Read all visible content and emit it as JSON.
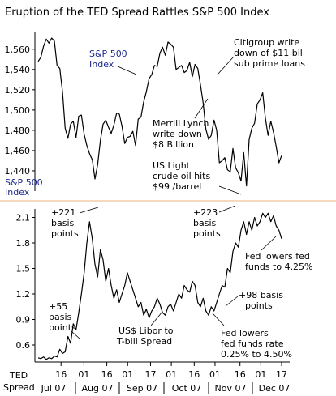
{
  "colors": {
    "background": "#ffffff",
    "line": "#000000",
    "top_label": "#1f2a8c",
    "bottom_label": "#000000",
    "divider": "#e8b37a"
  },
  "chart_data": [
    {
      "type": "line",
      "title": "Eruption of the TED Spread Rattles S&P 500 Index",
      "series_label": [
        "S&P 500",
        "Index"
      ],
      "ylabel_lines": [
        "S&P 500",
        "Index"
      ],
      "ylim": [
        1420,
        1575
      ],
      "yticks": [
        1560,
        1540,
        1520,
        1500,
        1480,
        1460,
        1440
      ],
      "ytick_labels": [
        "1,560",
        "1,540",
        "1,520",
        "1,500",
        "1,480",
        "1,460",
        "1,440"
      ],
      "grid": false,
      "series": [
        {
          "values": [
            [
              0,
              1548
            ],
            [
              1,
              1552
            ],
            [
              2,
              1563
            ],
            [
              3,
              1570
            ],
            [
              4,
              1566
            ],
            [
              5,
              1571
            ],
            [
              6,
              1568
            ],
            [
              7,
              1544
            ],
            [
              8,
              1541
            ],
            [
              9,
              1518
            ],
            [
              10,
              1482
            ],
            [
              11,
              1472
            ],
            [
              12,
              1486
            ],
            [
              13,
              1489
            ],
            [
              14,
              1473
            ],
            [
              15,
              1494
            ],
            [
              16,
              1495
            ],
            [
              17,
              1476
            ],
            [
              18,
              1465
            ],
            [
              19,
              1457
            ],
            [
              20,
              1451
            ],
            [
              21,
              1432
            ],
            [
              22,
              1446
            ],
            [
              23,
              1470
            ],
            [
              24,
              1486
            ],
            [
              25,
              1490
            ],
            [
              26,
              1483
            ],
            [
              27,
              1477
            ],
            [
              28,
              1485
            ],
            [
              29,
              1497
            ],
            [
              30,
              1496
            ],
            [
              31,
              1484
            ],
            [
              32,
              1467
            ],
            [
              33,
              1473
            ],
            [
              34,
              1474
            ],
            [
              35,
              1479
            ],
            [
              36,
              1465
            ],
            [
              37,
              1491
            ],
            [
              38,
              1493
            ],
            [
              39,
              1508
            ],
            [
              40,
              1518
            ],
            [
              41,
              1531
            ],
            [
              42,
              1535
            ],
            [
              43,
              1544
            ],
            [
              44,
              1543
            ],
            [
              45,
              1556
            ],
            [
              46,
              1562
            ],
            [
              47,
              1554
            ],
            [
              48,
              1567
            ],
            [
              49,
              1565
            ],
            [
              50,
              1562
            ],
            [
              51,
              1540
            ],
            [
              52,
              1542
            ],
            [
              53,
              1544
            ],
            [
              54,
              1537
            ],
            [
              55,
              1539
            ],
            [
              56,
              1547
            ],
            [
              57,
              1533
            ],
            [
              58,
              1545
            ],
            [
              59,
              1541
            ],
            [
              60,
              1525
            ],
            [
              61,
              1507
            ],
            [
              62,
              1481
            ],
            [
              63,
              1471
            ],
            [
              64,
              1475
            ],
            [
              65,
              1490
            ],
            [
              66,
              1480
            ],
            [
              67,
              1448
            ],
            [
              68,
              1450
            ],
            [
              69,
              1453
            ],
            [
              70,
              1441
            ],
            [
              71,
              1439
            ],
            [
              72,
              1462
            ],
            [
              73,
              1443
            ],
            [
              74,
              1438
            ],
            [
              75,
              1430
            ],
            [
              76,
              1458
            ],
            [
              77,
              1425
            ],
            [
              78,
              1471
            ],
            [
              79,
              1482
            ],
            [
              80,
              1487
            ],
            [
              81,
              1506
            ],
            [
              82,
              1510
            ],
            [
              83,
              1517
            ],
            [
              84,
              1492
            ],
            [
              85,
              1475
            ],
            [
              86,
              1489
            ],
            [
              87,
              1478
            ],
            [
              88,
              1464
            ],
            [
              89,
              1448
            ],
            [
              90,
              1455
            ]
          ]
        }
      ],
      "annotations": [
        {
          "lines": [
            "Citigroup write",
            "down of $11 bil",
            "sub prime loans"
          ]
        },
        {
          "lines": [
            "Merrill Lynch",
            "write down",
            "$8 Billion"
          ]
        },
        {
          "lines": [
            "US Light",
            "crude oil hits",
            "$99 /barrel"
          ]
        }
      ]
    },
    {
      "type": "line",
      "series_label": [
        "US$ Libor to",
        "T-bill Spread"
      ],
      "ylabel_lines": [
        "TED",
        "Spread"
      ],
      "ylim": [
        0.4,
        2.2
      ],
      "yticks": [
        2.1,
        1.8,
        1.5,
        1.2,
        0.9,
        0.6
      ],
      "ytick_labels": [
        "2.1",
        "1.8",
        "1.5",
        "1.2",
        "0.9",
        "0.6"
      ],
      "grid": false,
      "xtick_labels": [
        "16",
        "01",
        "16",
        "01",
        "17",
        "01",
        "16",
        "01",
        "16",
        "01",
        "17"
      ],
      "month_labels": [
        "Jul 07",
        "Aug 07",
        "Sep 07",
        "Oct 07",
        "Nov 07",
        "Dec 07"
      ],
      "series": [
        {
          "values": [
            [
              0,
              0.45
            ],
            [
              1,
              0.44
            ],
            [
              2,
              0.46
            ],
            [
              3,
              0.43
            ],
            [
              4,
              0.45
            ],
            [
              5,
              0.44
            ],
            [
              6,
              0.47
            ],
            [
              7,
              0.46
            ],
            [
              8,
              0.55
            ],
            [
              9,
              0.5
            ],
            [
              10,
              0.52
            ],
            [
              11,
              0.7
            ],
            [
              12,
              0.62
            ],
            [
              13,
              0.85
            ],
            [
              14,
              0.78
            ],
            [
              15,
              0.98
            ],
            [
              16,
              1.2
            ],
            [
              17,
              1.45
            ],
            [
              18,
              1.8
            ],
            [
              19,
              2.05
            ],
            [
              20,
              1.85
            ],
            [
              21,
              1.55
            ],
            [
              22,
              1.4
            ],
            [
              23,
              1.72
            ],
            [
              24,
              1.6
            ],
            [
              25,
              1.35
            ],
            [
              26,
              1.5
            ],
            [
              27,
              1.3
            ],
            [
              28,
              1.15
            ],
            [
              29,
              1.25
            ],
            [
              30,
              1.1
            ],
            [
              31,
              1.2
            ],
            [
              32,
              1.3
            ],
            [
              33,
              1.45
            ],
            [
              34,
              1.35
            ],
            [
              35,
              1.25
            ],
            [
              36,
              1.15
            ],
            [
              37,
              1.05
            ],
            [
              38,
              1.1
            ],
            [
              39,
              0.95
            ],
            [
              40,
              1.02
            ],
            [
              41,
              0.92
            ],
            [
              42,
              1.0
            ],
            [
              43,
              1.05
            ],
            [
              44,
              1.15
            ],
            [
              45,
              1.08
            ],
            [
              46,
              0.98
            ],
            [
              47,
              0.95
            ],
            [
              48,
              1.05
            ],
            [
              49,
              1.08
            ],
            [
              50,
              1.0
            ],
            [
              51,
              1.1
            ],
            [
              52,
              1.2
            ],
            [
              53,
              1.15
            ],
            [
              54,
              1.3
            ],
            [
              55,
              1.25
            ],
            [
              56,
              1.22
            ],
            [
              57,
              1.35
            ],
            [
              58,
              1.3
            ],
            [
              59,
              1.1
            ],
            [
              60,
              1.05
            ],
            [
              61,
              1.15
            ],
            [
              62,
              1.0
            ],
            [
              63,
              0.95
            ],
            [
              64,
              1.05
            ],
            [
              65,
              1.0
            ],
            [
              66,
              1.1
            ],
            [
              67,
              1.2
            ],
            [
              68,
              1.3
            ],
            [
              69,
              1.28
            ],
            [
              70,
              1.5
            ],
            [
              71,
              1.45
            ],
            [
              72,
              1.7
            ],
            [
              73,
              1.8
            ],
            [
              74,
              1.75
            ],
            [
              75,
              1.95
            ],
            [
              76,
              2.05
            ],
            [
              77,
              1.9
            ],
            [
              78,
              2.05
            ],
            [
              79,
              1.95
            ],
            [
              80,
              2.1
            ],
            [
              81,
              2.0
            ],
            [
              82,
              2.05
            ],
            [
              83,
              2.15
            ],
            [
              84,
              2.1
            ],
            [
              85,
              2.15
            ],
            [
              86,
              2.05
            ],
            [
              87,
              2.12
            ],
            [
              88,
              2.0
            ],
            [
              89,
              1.95
            ],
            [
              90,
              1.85
            ]
          ]
        }
      ],
      "annotations": [
        {
          "lines": [
            "+221",
            "basis",
            "points"
          ]
        },
        {
          "lines": [
            "+223",
            "basis",
            "points"
          ]
        },
        {
          "lines": [
            "Fed lowers fed",
            "funds to 4.25%"
          ]
        },
        {
          "lines": [
            "+55",
            "basis",
            "points"
          ]
        },
        {
          "lines": [
            "+98 basis",
            "points"
          ]
        },
        {
          "lines": [
            "Fed lowers",
            "fed funds rate",
            "0.25% to 4.50%"
          ]
        }
      ]
    }
  ]
}
